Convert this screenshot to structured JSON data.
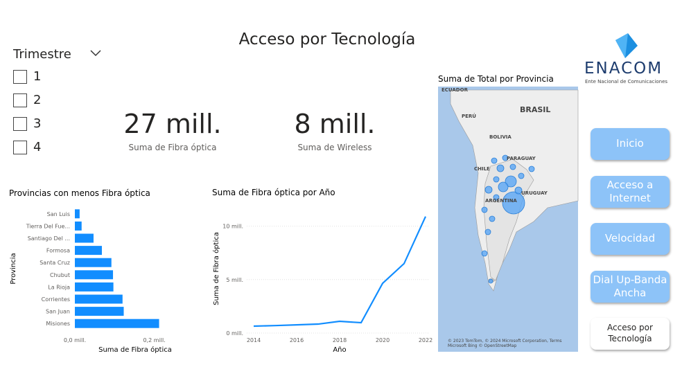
{
  "header": {
    "title": "Acceso por Tecnología"
  },
  "logo": {
    "name": "ENACOM",
    "subtitle": "Ente Nacional de Comunicaciones"
  },
  "slicer": {
    "title": "Trimestre",
    "options": [
      "1",
      "2",
      "3",
      "4"
    ]
  },
  "cards": [
    {
      "value": "27 mill.",
      "label": "Suma de Fibra óptica"
    },
    {
      "value": "8 mill.",
      "label": "Suma de Wireless"
    }
  ],
  "nav": [
    "Inicio",
    "Acceso a Internet",
    "Velocidad",
    "Dial Up-Banda Ancha",
    "Acceso por Tecnología"
  ],
  "map": {
    "title": "Suma de Total por Provincia",
    "labels": [
      "ECUADOR",
      "PERÚ",
      "BRASIL",
      "BOLIVIA",
      "PARAGUAY",
      "CHILE",
      "URUGUAY",
      "ARGENTINA"
    ],
    "attribution": "© 2023 TomTom, © 2024 Microsoft Corporation, Terms",
    "attribution2": "Microsoft Bing   © OpenStreetMap"
  },
  "chart_data": [
    {
      "type": "bar",
      "orientation": "horizontal",
      "title": "Provincias con menos Fibra óptica",
      "categories": [
        "San Luis",
        "Tierra Del Fue...",
        "Santiago Del ...",
        "Formosa",
        "Santa Cruz",
        "Chubut",
        "La Rioja",
        "Corrientes",
        "San Juan",
        "Misiones"
      ],
      "values": [
        0.012,
        0.017,
        0.047,
        0.068,
        0.092,
        0.096,
        0.097,
        0.12,
        0.123,
        0.212
      ],
      "color": "#118dff",
      "xlim": [
        0,
        0.225
      ],
      "xticks": [
        {
          "value": 0,
          "label": "0,0 mill."
        },
        {
          "value": 0.2,
          "label": "0,2 mill."
        }
      ],
      "xlabel": "Suma de Fibra óptica",
      "ylabel": "Provincia"
    },
    {
      "type": "line",
      "title": "Suma de Fibra óptica por Año",
      "x": [
        2014,
        2015,
        2016,
        2017,
        2018,
        2019,
        2020,
        2021,
        2022
      ],
      "values": [
        0.65,
        0.7,
        0.77,
        0.84,
        1.1,
        0.97,
        4.65,
        6.5,
        10.9
      ],
      "color": "#118dff",
      "xlim": [
        2014,
        2022
      ],
      "xticks": [
        2014,
        2016,
        2018,
        2020,
        2022
      ],
      "ylim": [
        0,
        11.4
      ],
      "yticks": [
        {
          "value": 0,
          "label": "0 mill."
        },
        {
          "value": 5,
          "label": "5 mill."
        },
        {
          "value": 10,
          "label": "10 mill."
        }
      ],
      "xlabel": "Año",
      "ylabel": "Suma de Fibra óptica"
    }
  ]
}
